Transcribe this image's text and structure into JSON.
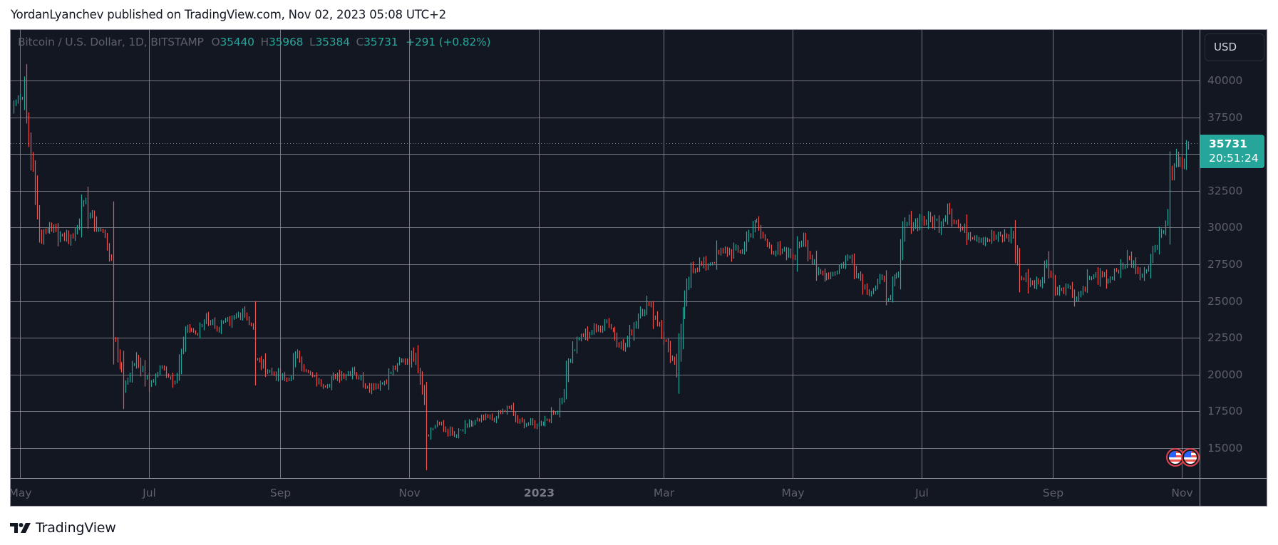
{
  "attribution": "YordanLyanchev published on TradingView.com, Nov 02, 2023 05:08 UTC+2",
  "legend": {
    "symbol": "Bitcoin / U.S. Dollar, 1D, BITSTAMP",
    "open_label": "O",
    "open": "35440",
    "high_label": "H",
    "high": "35968",
    "low_label": "L",
    "low": "35384",
    "close_label": "C",
    "close": "35731",
    "change": "+291 (+0.82%)"
  },
  "currency_button": "USD",
  "last_price": {
    "value": "35731",
    "countdown": "20:51:24"
  },
  "brand": {
    "name": "TradingView",
    "icon": "tradingview-logo-icon"
  },
  "event_icons": [
    "us-flag-icon",
    "us-flag-icon"
  ],
  "colors": {
    "background": "#131722",
    "grid": "#9598a1",
    "up": "#26a69a",
    "down": "#ef5350",
    "axis_text": "#5d606b",
    "last_price_bg": "#26a69a"
  },
  "chart_data": {
    "type": "ohlc-bar",
    "title": "Bitcoin / U.S. Dollar, 1D, BITSTAMP",
    "xlabel": "",
    "ylabel": "USD",
    "ylim": [
      13000,
      42000
    ],
    "grid": true,
    "y_ticks": [
      15000,
      17500,
      20000,
      22500,
      25000,
      27500,
      30000,
      32500,
      35000,
      37500,
      40000
    ],
    "y_tick_labels": [
      "15000",
      "17500",
      "20000",
      "22500",
      "25000",
      "27500",
      "30000",
      "32500",
      "",
      "37500",
      "40000"
    ],
    "x_ticks": [
      {
        "label": "May",
        "day": 3
      },
      {
        "label": "Jul",
        "day": 64
      },
      {
        "label": "Sep",
        "day": 126
      },
      {
        "label": "Nov",
        "day": 187
      },
      {
        "label": "2023",
        "day": 248
      },
      {
        "label": "Mar",
        "day": 307
      },
      {
        "label": "May",
        "day": 368
      },
      {
        "label": "Jul",
        "day": 429
      },
      {
        "label": "Sep",
        "day": 491
      },
      {
        "label": "Nov",
        "day": 552
      }
    ],
    "day_origin": "2022-04-28",
    "last_close": 35731,
    "close_anchors_day_price": [
      [
        0,
        38500
      ],
      [
        3,
        38800
      ],
      [
        5,
        39600
      ],
      [
        7,
        36000
      ],
      [
        9,
        34000
      ],
      [
        11,
        31000
      ],
      [
        13,
        29200
      ],
      [
        17,
        30100
      ],
      [
        22,
        29500
      ],
      [
        28,
        29300
      ],
      [
        33,
        31700
      ],
      [
        38,
        30300
      ],
      [
        43,
        29400
      ],
      [
        46,
        27800
      ],
      [
        47,
        22500
      ],
      [
        51,
        20400
      ],
      [
        52,
        19000
      ],
      [
        58,
        21200
      ],
      [
        64,
        19300
      ],
      [
        70,
        20500
      ],
      [
        76,
        19500
      ],
      [
        82,
        23300
      ],
      [
        87,
        22700
      ],
      [
        91,
        24000
      ],
      [
        95,
        23200
      ],
      [
        102,
        23500
      ],
      [
        108,
        24400
      ],
      [
        113,
        23200
      ],
      [
        114,
        21000
      ],
      [
        123,
        20000
      ],
      [
        130,
        19600
      ],
      [
        134,
        21500
      ],
      [
        138,
        20200
      ],
      [
        145,
        19300
      ],
      [
        152,
        19800
      ],
      [
        160,
        20300
      ],
      [
        167,
        19200
      ],
      [
        174,
        19400
      ],
      [
        181,
        20700
      ],
      [
        190,
        21300
      ],
      [
        194,
        18500
      ],
      [
        195,
        15900
      ],
      [
        200,
        16700
      ],
      [
        208,
        15800
      ],
      [
        214,
        16500
      ],
      [
        220,
        16900
      ],
      [
        228,
        17100
      ],
      [
        234,
        17800
      ],
      [
        238,
        16800
      ],
      [
        247,
        16550
      ],
      [
        256,
        17400
      ],
      [
        260,
        18800
      ],
      [
        262,
        20900
      ],
      [
        268,
        22700
      ],
      [
        275,
        23000
      ],
      [
        280,
        23700
      ],
      [
        288,
        21700
      ],
      [
        296,
        24300
      ],
      [
        300,
        24800
      ],
      [
        305,
        23300
      ],
      [
        313,
        20200
      ],
      [
        316,
        24100
      ],
      [
        320,
        27400
      ],
      [
        328,
        27500
      ],
      [
        335,
        28400
      ],
      [
        343,
        28300
      ],
      [
        350,
        30400
      ],
      [
        356,
        28800
      ],
      [
        362,
        28300
      ],
      [
        368,
        28000
      ],
      [
        373,
        29500
      ],
      [
        379,
        26800
      ],
      [
        387,
        26900
      ],
      [
        395,
        28000
      ],
      [
        403,
        25700
      ],
      [
        411,
        26400
      ],
      [
        412,
        25100
      ],
      [
        418,
        26800
      ],
      [
        419,
        28300
      ],
      [
        421,
        30200
      ],
      [
        428,
        30500
      ],
      [
        438,
        30300
      ],
      [
        441,
        31400
      ],
      [
        447,
        29900
      ],
      [
        459,
        29200
      ],
      [
        472,
        29400
      ],
      [
        475,
        26600
      ],
      [
        485,
        26100
      ],
      [
        488,
        27700
      ],
      [
        492,
        25900
      ],
      [
        498,
        26000
      ],
      [
        502,
        25200
      ],
      [
        508,
        26600
      ],
      [
        518,
        26500
      ],
      [
        522,
        27000
      ],
      [
        527,
        27900
      ],
      [
        532,
        26700
      ],
      [
        535,
        27100
      ],
      [
        538,
        28500
      ],
      [
        542,
        29700
      ],
      [
        544,
        30300
      ],
      [
        545,
        31000
      ],
      [
        546,
        34000
      ],
      [
        548,
        34200
      ],
      [
        550,
        34400
      ],
      [
        553,
        34600
      ],
      [
        554,
        35440
      ],
      [
        555,
        35731
      ]
    ]
  }
}
